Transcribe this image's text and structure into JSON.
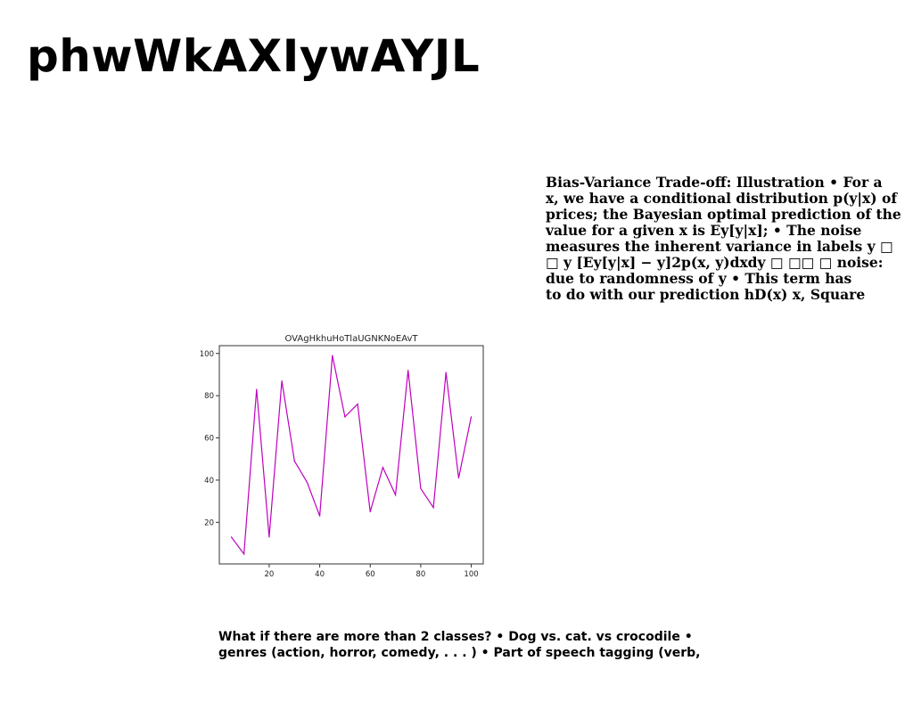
{
  "page": {
    "title": "phwWkAXIywAYJL"
  },
  "text_block": {
    "content": "Bias-Variance Trade-off: Illustration • For a\nx, we have a conditional distribution p(y|x) of\nprices; the Bayesian optimal prediction of the\nvalue for a given x is Ey[y|x]; • The noise\nmeasures the inherent variance in labels y □\n□ y [Ey[y|x] − y]2p(x, y)dxdy □ □□ □ noise:\ndue to randomness of y • This term has\nto do with our prediction hD(x) x, Square"
  },
  "chart_data": {
    "type": "line",
    "title": "OVAgHkhuHoTlaUGNKNoEAvT",
    "xlabel": "",
    "ylabel": "",
    "color": "#bf00bf",
    "x": [
      5,
      10,
      15,
      20,
      25,
      30,
      35,
      40,
      45,
      50,
      55,
      60,
      65,
      70,
      75,
      80,
      85,
      90,
      95,
      100
    ],
    "y": [
      13,
      5,
      83,
      13,
      87,
      49,
      39,
      23,
      99,
      70,
      76,
      25,
      46,
      33,
      92,
      36,
      27,
      91,
      41,
      70
    ],
    "xlim": [
      0.25,
      104.75
    ],
    "ylim": [
      0.3,
      103.7
    ],
    "xticks": [
      20,
      40,
      60,
      80,
      100
    ],
    "yticks": [
      20,
      40,
      60,
      80,
      100
    ],
    "grid": false
  },
  "bottom_text": {
    "content": "What if there are more than 2 classes? • Dog vs. cat. vs crocodile •\ngenres (action, horror, comedy, . . . ) • Part of speech tagging (verb,"
  }
}
